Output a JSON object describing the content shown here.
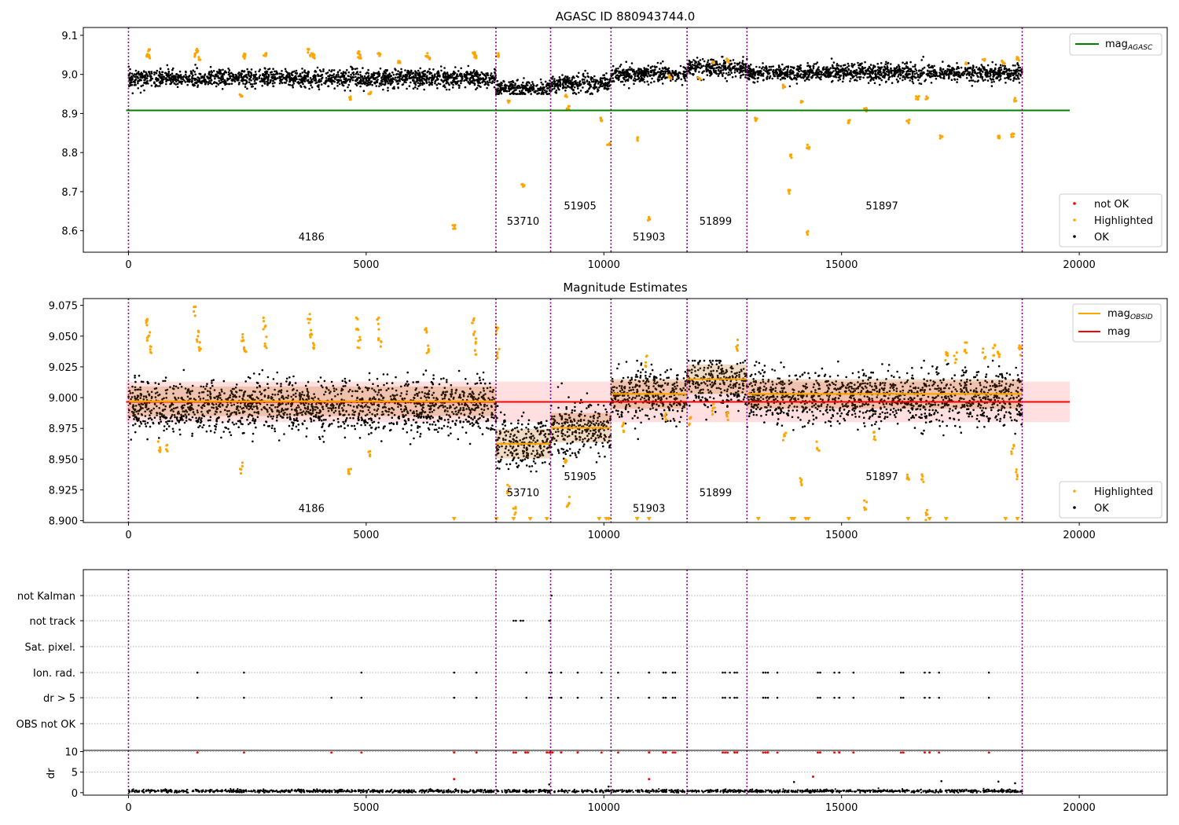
{
  "chart_data": [
    {
      "type": "scatter",
      "title": "AGASC ID 880943744.0",
      "xlim": [
        -950,
        21850
      ],
      "ylim": [
        8.545,
        9.12
      ],
      "xticks": [
        0,
        5000,
        10000,
        15000,
        20000
      ],
      "yticks": [
        8.6,
        8.7,
        8.8,
        8.9,
        9.0,
        9.1
      ],
      "ytick_labels": [
        "8.6",
        "8.7",
        "8.8",
        "8.9",
        "9.0",
        "9.1"
      ],
      "obs_boundaries": [
        0,
        7730,
        8880,
        10150,
        11750,
        13010,
        18800
      ],
      "obs_labels": [
        {
          "text": "4186",
          "x": 3850,
          "y": 8.575
        },
        {
          "text": "53710",
          "x": 8300,
          "y": 8.615
        },
        {
          "text": "51905",
          "x": 9500,
          "y": 8.655
        },
        {
          "text": "51903",
          "x": 10950,
          "y": 8.575
        },
        {
          "text": "51899",
          "x": 12350,
          "y": 8.615
        },
        {
          "text": "51897",
          "x": 15850,
          "y": 8.655
        }
      ],
      "lines": [
        {
          "name": "mag_AGASC",
          "color": "#008000",
          "x": [
            -50,
            19800
          ],
          "y": [
            8.908,
            8.908
          ]
        }
      ],
      "segments": [
        {
          "x0": 0,
          "x1": 7730,
          "mean": 8.99
        },
        {
          "x0": 7730,
          "x1": 8880,
          "mean": 8.963
        },
        {
          "x0": 8880,
          "x1": 10150,
          "mean": 8.975
        },
        {
          "x0": 10150,
          "x1": 11750,
          "mean": 9.002
        },
        {
          "x0": 11750,
          "x1": 13010,
          "mean": 9.016
        },
        {
          "x0": 13010,
          "x1": 18800,
          "mean": 9.004
        }
      ],
      "highlight_points": [
        [
          390,
          9.05
        ],
        [
          420,
          9.06
        ],
        [
          450,
          9.045
        ],
        [
          1410,
          9.05
        ],
        [
          1450,
          9.06
        ],
        [
          1500,
          9.04
        ],
        [
          2430,
          9.045
        ],
        [
          2450,
          9.052
        ],
        [
          2870,
          9.05
        ],
        [
          3800,
          9.06
        ],
        [
          3850,
          9.05
        ],
        [
          3900,
          9.045
        ],
        [
          4830,
          9.055
        ],
        [
          4860,
          9.045
        ],
        [
          5270,
          9.05
        ],
        [
          5700,
          9.03
        ],
        [
          6270,
          9.05
        ],
        [
          6310,
          9.04
        ],
        [
          7270,
          9.055
        ],
        [
          7310,
          9.045
        ],
        [
          7760,
          9.05
        ],
        [
          2370,
          8.945
        ],
        [
          4650,
          8.94
        ],
        [
          5080,
          8.955
        ],
        [
          6850,
          8.61
        ],
        [
          8300,
          8.715
        ],
        [
          8000,
          8.93
        ],
        [
          9200,
          8.945
        ],
        [
          9250,
          8.915
        ],
        [
          9950,
          8.885
        ],
        [
          10100,
          8.82
        ],
        [
          10700,
          8.835
        ],
        [
          10950,
          8.63
        ],
        [
          13200,
          8.885
        ],
        [
          13930,
          8.79
        ],
        [
          13900,
          8.7
        ],
        [
          14150,
          8.93
        ],
        [
          14300,
          8.815
        ],
        [
          14270,
          8.595
        ],
        [
          15150,
          8.88
        ],
        [
          16400,
          8.88
        ],
        [
          16600,
          8.94
        ],
        [
          16800,
          8.94
        ],
        [
          17100,
          8.84
        ],
        [
          18300,
          8.84
        ],
        [
          18600,
          8.845
        ],
        [
          18650,
          8.935
        ],
        [
          18700,
          9.04
        ],
        [
          18400,
          9.03
        ],
        [
          18000,
          9.035
        ],
        [
          17600,
          9.03
        ],
        [
          12300,
          9.03
        ],
        [
          12600,
          9.035
        ],
        [
          11400,
          8.995
        ],
        [
          12000,
          8.99
        ],
        [
          13800,
          8.97
        ],
        [
          15500,
          8.91
        ]
      ],
      "legend": [
        {
          "label": "not OK",
          "marker": "dot",
          "color": "#ff0000"
        },
        {
          "label": "Highlighted",
          "marker": "dot",
          "color": "#ffa500"
        },
        {
          "label": "OK",
          "marker": "dot",
          "color": "#000000"
        }
      ],
      "legend_top": {
        "label": "mag",
        "subscript": "AGASC",
        "color": "#008000"
      },
      "legend_position": "top-right / lower-right",
      "grid": false
    },
    {
      "type": "scatter",
      "title": "Magnitude Estimates",
      "xlim": [
        -950,
        21850
      ],
      "ylim": [
        8.8985,
        9.0805
      ],
      "xticks": [
        0,
        5000,
        10000,
        15000,
        20000
      ],
      "yticks": [
        8.9,
        8.925,
        8.95,
        8.975,
        9.0,
        9.025,
        9.05,
        9.075
      ],
      "ytick_labels": [
        "8.900",
        "8.925",
        "8.950",
        "8.975",
        "9.000",
        "9.025",
        "9.050",
        "9.075"
      ],
      "obs_boundaries": [
        0,
        7730,
        8880,
        10150,
        11750,
        13010,
        18800
      ],
      "obs_labels": [
        {
          "text": "4186",
          "x": 3850,
          "y": 8.907
        },
        {
          "text": "53710",
          "x": 8300,
          "y": 8.92
        },
        {
          "text": "51905",
          "x": 9500,
          "y": 8.933
        },
        {
          "text": "51903",
          "x": 10950,
          "y": 8.907
        },
        {
          "text": "51899",
          "x": 12350,
          "y": 8.92
        },
        {
          "text": "51897",
          "x": 15850,
          "y": 8.933
        }
      ],
      "lines": [
        {
          "name": "mag",
          "color": "#ff0000",
          "x": [
            -50,
            19800
          ],
          "y": [
            8.9965,
            8.9965
          ]
        }
      ],
      "band": {
        "y0": 8.98,
        "y1": 9.013,
        "x0": -50,
        "x1": 19800,
        "color": "#ffb0b0"
      },
      "mag_obsid": [
        {
          "x0": 0,
          "x1": 7730,
          "y": 8.997
        },
        {
          "x0": 7730,
          "x1": 8880,
          "y": 8.9625
        },
        {
          "x0": 8880,
          "x1": 10150,
          "y": 8.9755
        },
        {
          "x0": 10150,
          "x1": 11750,
          "y": 9.003
        },
        {
          "x0": 11750,
          "x1": 13010,
          "y": 9.015
        },
        {
          "x0": 13010,
          "x1": 18800,
          "y": 9.003
        }
      ],
      "segments": [
        {
          "x0": 0,
          "x1": 7730,
          "mean": 8.993
        },
        {
          "x0": 7730,
          "x1": 8880,
          "mean": 8.962
        },
        {
          "x0": 8880,
          "x1": 10150,
          "mean": 8.974
        },
        {
          "x0": 10150,
          "x1": 11750,
          "mean": 9.002
        },
        {
          "x0": 11750,
          "x1": 13010,
          "mean": 9.013
        },
        {
          "x0": 13010,
          "x1": 18800,
          "mean": 9.0
        }
      ],
      "highlight_points": [
        [
          380,
          9.06
        ],
        [
          420,
          9.05
        ],
        [
          450,
          9.04
        ],
        [
          1400,
          9.07
        ],
        [
          1450,
          9.05
        ],
        [
          1500,
          9.04
        ],
        [
          2400,
          9.05
        ],
        [
          2450,
          9.04
        ],
        [
          2860,
          9.06
        ],
        [
          2880,
          9.045
        ],
        [
          3800,
          9.065
        ],
        [
          3850,
          9.05
        ],
        [
          3880,
          9.04
        ],
        [
          4810,
          9.06
        ],
        [
          4850,
          9.045
        ],
        [
          5260,
          9.06
        ],
        [
          5290,
          9.045
        ],
        [
          6260,
          9.055
        ],
        [
          6300,
          9.04
        ],
        [
          7250,
          9.065
        ],
        [
          7290,
          9.05
        ],
        [
          7310,
          9.04
        ],
        [
          7750,
          9.055
        ],
        [
          7770,
          9.035
        ],
        [
          2370,
          8.943
        ],
        [
          4650,
          8.937
        ],
        [
          5080,
          8.956
        ],
        [
          650,
          8.96
        ],
        [
          800,
          8.958
        ],
        [
          8120,
          8.908
        ],
        [
          8000,
          8.925
        ],
        [
          9200,
          8.947
        ],
        [
          9250,
          8.915
        ],
        [
          10400,
          8.977
        ],
        [
          10900,
          9.03
        ],
        [
          11300,
          8.985
        ],
        [
          11800,
          8.98
        ],
        [
          12300,
          8.99
        ],
        [
          12600,
          8.985
        ],
        [
          12800,
          9.042
        ],
        [
          13800,
          8.97
        ],
        [
          14150,
          8.93
        ],
        [
          14500,
          8.96
        ],
        [
          15500,
          8.912
        ],
        [
          15700,
          8.97
        ],
        [
          16400,
          8.937
        ],
        [
          16700,
          8.935
        ],
        [
          16800,
          8.905
        ],
        [
          17200,
          9.035
        ],
        [
          17600,
          9.04
        ],
        [
          18000,
          9.035
        ],
        [
          18300,
          9.033
        ],
        [
          18600,
          8.958
        ],
        [
          18700,
          8.937
        ],
        [
          18750,
          9.038
        ],
        [
          18200,
          9.038
        ],
        [
          17400,
          9.032
        ]
      ],
      "below_markers": [
        6850,
        7740,
        8100,
        8450,
        8800,
        9900,
        10050,
        10100,
        10700,
        10950,
        13250,
        13950,
        14000,
        14250,
        14300,
        15150,
        16400,
        16850,
        17200,
        18450,
        18700
      ],
      "legend": [
        {
          "label": "Highlighted",
          "marker": "dot",
          "color": "#ffa500"
        },
        {
          "label": "OK",
          "marker": "dot",
          "color": "#000000"
        }
      ],
      "legend_top": [
        {
          "label": "mag",
          "subscript": "OBSID",
          "color": "#ffa500"
        },
        {
          "label": "mag",
          "subscript": "",
          "color": "#ff0000"
        }
      ],
      "legend_position": "top-right / lower-right",
      "grid": false
    },
    {
      "type": "scatter",
      "title": "",
      "xlim": [
        -950,
        21850
      ],
      "categories": [
        "not Kalman",
        "not track",
        "Sat. pixel.",
        "Ion. rad.",
        "dr > 5",
        "OBS not OK"
      ],
      "obs_boundaries": [
        0,
        7730,
        8880,
        10150,
        11750,
        13010,
        18800
      ],
      "flag_points": {
        "not Kalman": [
          8900
        ],
        "not track": [
          8100,
          8150,
          8250,
          8300,
          8850,
          8870
        ],
        "Sat. pixel.": [],
        "Ion. rad.": [
          1450,
          2430,
          4900,
          6850,
          7320,
          8370,
          8850,
          8900,
          9100,
          9450,
          9950,
          10300,
          10950,
          11250,
          11300,
          11450,
          11500,
          12500,
          12550,
          12650,
          12750,
          12800,
          13350,
          13400,
          13450,
          13650,
          14500,
          14550,
          14850,
          14950,
          15250,
          16250,
          16300,
          16750,
          16850,
          17050,
          18100
        ],
        "dr > 5": [
          1450,
          2430,
          4270,
          4900,
          6850,
          7320,
          8370,
          8850,
          8900,
          9100,
          9450,
          9950,
          10300,
          10950,
          11250,
          11300,
          11450,
          11500,
          12500,
          12550,
          12650,
          12750,
          12800,
          13350,
          13400,
          13450,
          13650,
          14500,
          14550,
          14850,
          14950,
          15250,
          16250,
          16300,
          16750,
          16850,
          17050,
          18100
        ],
        "OBS not OK": []
      }
    },
    {
      "type": "scatter",
      "title": "",
      "ylabel": "dr",
      "xlim": [
        -950,
        21850
      ],
      "ylim": [
        -0.6,
        10.3
      ],
      "xticks": [
        0,
        5000,
        10000,
        15000,
        20000
      ],
      "yticks": [
        0,
        5,
        10
      ],
      "ytick_labels": [
        "0",
        "5",
        "10"
      ],
      "obs_boundaries": [
        0,
        7730,
        8880,
        10150,
        11750,
        13010,
        18800
      ],
      "red_points": [
        [
          1450,
          9.8
        ],
        [
          2430,
          9.8
        ],
        [
          4270,
          9.8
        ],
        [
          4900,
          9.8
        ],
        [
          6850,
          9.8
        ],
        [
          7320,
          9.8
        ],
        [
          8100,
          9.8
        ],
        [
          8150,
          9.8
        ],
        [
          8350,
          9.8
        ],
        [
          8400,
          9.8
        ],
        [
          8800,
          9.8
        ],
        [
          8850,
          9.8
        ],
        [
          8880,
          9.8
        ],
        [
          8920,
          9.8
        ],
        [
          9100,
          9.8
        ],
        [
          9450,
          9.8
        ],
        [
          9950,
          9.8
        ],
        [
          10300,
          9.8
        ],
        [
          10950,
          9.8
        ],
        [
          11250,
          9.8
        ],
        [
          11300,
          9.8
        ],
        [
          11450,
          9.8
        ],
        [
          11500,
          9.8
        ],
        [
          12500,
          9.8
        ],
        [
          12550,
          9.8
        ],
        [
          12600,
          9.8
        ],
        [
          12750,
          9.8
        ],
        [
          12800,
          9.8
        ],
        [
          13350,
          9.8
        ],
        [
          13400,
          9.8
        ],
        [
          13450,
          9.8
        ],
        [
          13650,
          9.8
        ],
        [
          14500,
          9.8
        ],
        [
          14550,
          9.8
        ],
        [
          14850,
          9.8
        ],
        [
          14950,
          9.8
        ],
        [
          15250,
          9.8
        ],
        [
          16250,
          9.8
        ],
        [
          16300,
          9.8
        ],
        [
          16750,
          9.8
        ],
        [
          16850,
          9.8
        ],
        [
          17050,
          9.8
        ],
        [
          18100,
          9.8
        ],
        [
          6850,
          3.3
        ],
        [
          10950,
          3.3
        ],
        [
          14400,
          3.9
        ]
      ],
      "black_points": [
        [
          8850,
          2.0
        ],
        [
          10100,
          1.5
        ],
        [
          14000,
          2.6
        ],
        [
          17100,
          2.8
        ],
        [
          18300,
          2.7
        ],
        [
          18650,
          2.3
        ]
      ],
      "base_level": 0.4
    }
  ]
}
